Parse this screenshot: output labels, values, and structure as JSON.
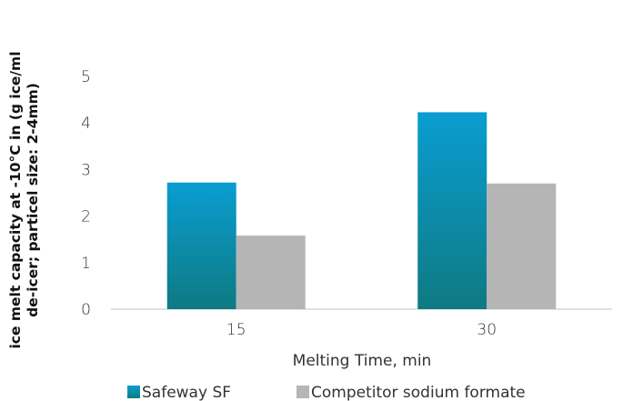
{
  "chart_data": {
    "type": "bar",
    "title": "",
    "xlabel": "Melting Time, min",
    "ylabel_lines": [
      "ice melt capacity  at -10°C in (g ice/ml",
      "de-icer; particel size: 2-4mm)"
    ],
    "categories": [
      "15",
      "30"
    ],
    "ylim": [
      0,
      5
    ],
    "yticks": [
      "0",
      "1",
      "2",
      "3",
      "4",
      "5"
    ],
    "grid": false,
    "legend_position": "bottom",
    "series": [
      {
        "name": "Safeway SF",
        "values": [
          2.72,
          4.23
        ],
        "color_top": "#0a9dd1",
        "color_bottom": "#0e7a82"
      },
      {
        "name": "Competitor sodium formate",
        "values": [
          1.58,
          2.7
        ],
        "color": "#b5b5b5"
      }
    ]
  }
}
